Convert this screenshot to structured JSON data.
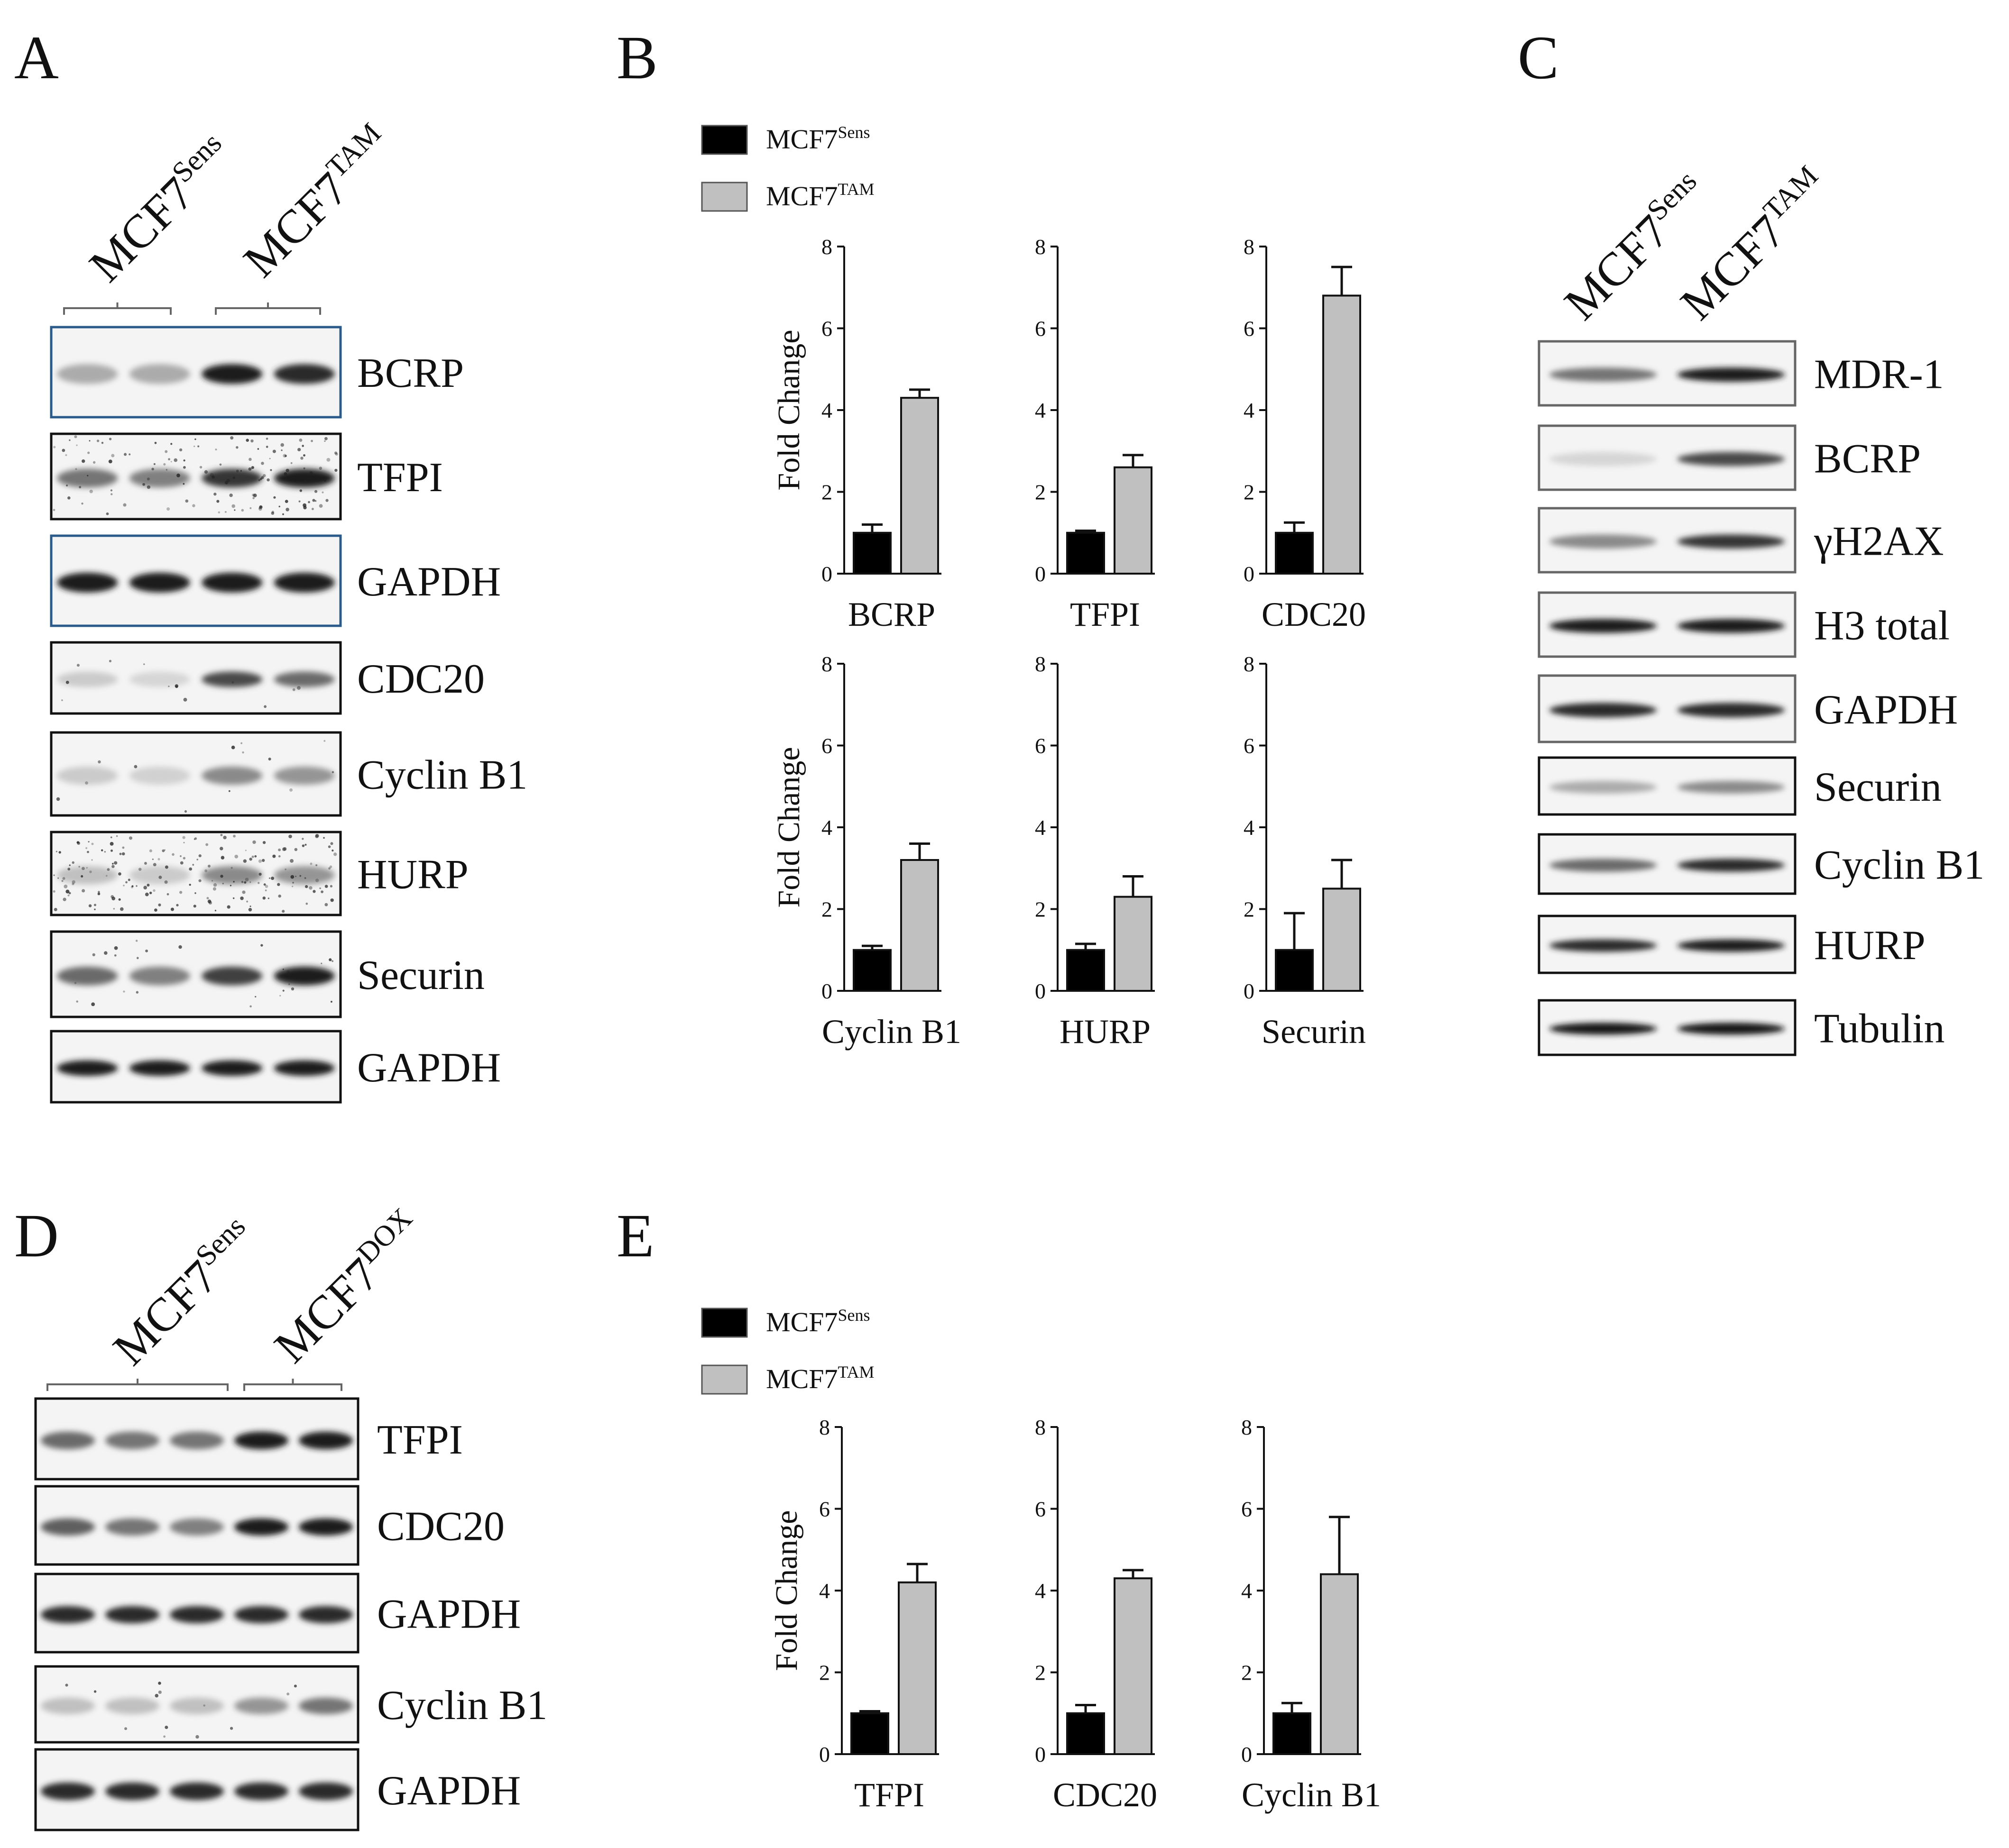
{
  "panels": {
    "A": {
      "letter": "A",
      "groups": [
        {
          "base": "MCF7",
          "sup": "Sens"
        },
        {
          "base": "MCF7",
          "sup": "TAM"
        }
      ],
      "blots": [
        {
          "label": "BCRP",
          "intensity": [
            0.3,
            0.3,
            0.95,
            0.9
          ],
          "noise": 0.0,
          "border": "#2a5a8a"
        },
        {
          "label": "TFPI",
          "intensity": [
            0.55,
            0.5,
            0.85,
            0.95
          ],
          "noise": 0.55,
          "border": "#111111"
        },
        {
          "label": "GAPDH",
          "intensity": [
            0.95,
            0.95,
            0.95,
            0.95
          ],
          "noise": 0.0,
          "border": "#2a5a8a"
        },
        {
          "label": "CDC20",
          "intensity": [
            0.15,
            0.1,
            0.75,
            0.6
          ],
          "noise": 0.05,
          "border": "#111111"
        },
        {
          "label": "Cyclin B1",
          "intensity": [
            0.15,
            0.12,
            0.45,
            0.4
          ],
          "noise": 0.05,
          "border": "#111111"
        },
        {
          "label": "HURP",
          "intensity": [
            0.2,
            0.15,
            0.45,
            0.4
          ],
          "noise": 0.75,
          "border": "#111111"
        },
        {
          "label": "Securin",
          "intensity": [
            0.6,
            0.5,
            0.8,
            0.95
          ],
          "noise": 0.1,
          "border": "#111111"
        },
        {
          "label": "GAPDH",
          "intensity": [
            0.95,
            0.95,
            0.95,
            0.95
          ],
          "noise": 0.0,
          "border": "#111111"
        }
      ]
    },
    "B": {
      "letter": "B",
      "legend": [
        {
          "base": "MCF7",
          "sup": "Sens",
          "color": "#000000"
        },
        {
          "base": "MCF7",
          "sup": "TAM",
          "color": "#c0c0c0"
        }
      ],
      "ylabel": "Fold Change"
    },
    "C": {
      "letter": "C",
      "groups": [
        {
          "base": "MCF7",
          "sup": "Sens"
        },
        {
          "base": "MCF7",
          "sup": "TAM"
        }
      ],
      "blots": [
        {
          "label": "MDR-1",
          "intensity": [
            0.55,
            0.95
          ],
          "noise": 0.0,
          "border": "#666666"
        },
        {
          "label": "BCRP",
          "intensity": [
            0.1,
            0.75
          ],
          "noise": 0.0,
          "border": "#666666"
        },
        {
          "label": "γH2AX",
          "intensity": [
            0.45,
            0.85
          ],
          "noise": 0.0,
          "border": "#666666"
        },
        {
          "label": "H3 total",
          "intensity": [
            0.95,
            0.95
          ],
          "noise": 0.0,
          "border": "#666666"
        },
        {
          "label": "GAPDH",
          "intensity": [
            0.9,
            0.9
          ],
          "noise": 0.0,
          "border": "#666666"
        },
        {
          "label": "Securin",
          "intensity": [
            0.3,
            0.45
          ],
          "noise": 0.0,
          "border": "#111111"
        },
        {
          "label": "Cyclin B1",
          "intensity": [
            0.6,
            0.9
          ],
          "noise": 0.0,
          "border": "#111111"
        },
        {
          "label": "HURP",
          "intensity": [
            0.9,
            0.95
          ],
          "noise": 0.0,
          "border": "#111111"
        },
        {
          "label": "Tubulin",
          "intensity": [
            1.0,
            1.0
          ],
          "noise": 0.0,
          "border": "#111111"
        }
      ]
    },
    "D": {
      "letter": "D",
      "groups": [
        {
          "base": "MCF7",
          "sup": "Sens"
        },
        {
          "base": "MCF7",
          "sup": "DOX"
        }
      ],
      "blots": [
        {
          "label": "TFPI",
          "intensity": [
            0.6,
            0.55,
            0.55,
            0.95,
            0.95
          ],
          "noise": 0.0,
          "border": "#111111"
        },
        {
          "label": "CDC20",
          "intensity": [
            0.65,
            0.55,
            0.5,
            0.95,
            0.95
          ],
          "noise": 0.0,
          "border": "#111111"
        },
        {
          "label": "GAPDH",
          "intensity": [
            0.9,
            0.9,
            0.9,
            0.9,
            0.9
          ],
          "noise": 0.0,
          "border": "#111111"
        },
        {
          "label": "Cyclin B1",
          "intensity": [
            0.2,
            0.2,
            0.2,
            0.4,
            0.55
          ],
          "noise": 0.05,
          "border": "#111111"
        },
        {
          "label": "GAPDH",
          "intensity": [
            0.9,
            0.9,
            0.9,
            0.9,
            0.9
          ],
          "noise": 0.0,
          "border": "#111111"
        }
      ]
    },
    "E": {
      "letter": "E",
      "legend": [
        {
          "base": "MCF7",
          "sup": "Sens",
          "color": "#000000"
        },
        {
          "base": "MCF7",
          "sup": "TAM",
          "color": "#c0c0c0"
        }
      ],
      "ylabel": "Fold Change"
    }
  },
  "chart_data": [
    {
      "type": "bar",
      "title": "",
      "xlabel": "BCRP",
      "ylabel": "Fold Change",
      "ylim": [
        0,
        8
      ],
      "yticks": [
        0,
        2,
        4,
        6,
        8
      ],
      "series": [
        {
          "name": "MCF7Sens",
          "values": [
            1.0
          ],
          "errors": [
            0.2
          ]
        },
        {
          "name": "MCF7TAM",
          "values": [
            4.3
          ],
          "errors": [
            0.2
          ]
        }
      ]
    },
    {
      "type": "bar",
      "title": "",
      "xlabel": "TFPI",
      "ylabel": "",
      "ylim": [
        0,
        8
      ],
      "yticks": [
        0,
        2,
        4,
        6,
        8
      ],
      "series": [
        {
          "name": "MCF7Sens",
          "values": [
            1.0
          ],
          "errors": [
            0.05
          ]
        },
        {
          "name": "MCF7TAM",
          "values": [
            2.6
          ],
          "errors": [
            0.3
          ]
        }
      ]
    },
    {
      "type": "bar",
      "title": "",
      "xlabel": "CDC20",
      "ylabel": "",
      "ylim": [
        0,
        8
      ],
      "yticks": [
        0,
        2,
        4,
        6,
        8
      ],
      "series": [
        {
          "name": "MCF7Sens",
          "values": [
            1.0
          ],
          "errors": [
            0.25
          ]
        },
        {
          "name": "MCF7TAM",
          "values": [
            6.8
          ],
          "errors": [
            0.7
          ]
        }
      ]
    },
    {
      "type": "bar",
      "title": "",
      "xlabel": "Cyclin B1",
      "ylabel": "Fold Change",
      "ylim": [
        0,
        8
      ],
      "yticks": [
        0,
        2,
        4,
        6,
        8
      ],
      "series": [
        {
          "name": "MCF7Sens",
          "values": [
            1.0
          ],
          "errors": [
            0.1
          ]
        },
        {
          "name": "MCF7TAM",
          "values": [
            3.2
          ],
          "errors": [
            0.4
          ]
        }
      ]
    },
    {
      "type": "bar",
      "title": "",
      "xlabel": "HURP",
      "ylabel": "",
      "ylim": [
        0,
        8
      ],
      "yticks": [
        0,
        2,
        4,
        6,
        8
      ],
      "series": [
        {
          "name": "MCF7Sens",
          "values": [
            1.0
          ],
          "errors": [
            0.15
          ]
        },
        {
          "name": "MCF7TAM",
          "values": [
            2.3
          ],
          "errors": [
            0.5
          ]
        }
      ]
    },
    {
      "type": "bar",
      "title": "",
      "xlabel": "Securin",
      "ylabel": "",
      "ylim": [
        0,
        8
      ],
      "yticks": [
        0,
        2,
        4,
        6,
        8
      ],
      "series": [
        {
          "name": "MCF7Sens",
          "values": [
            1.0
          ],
          "errors": [
            0.9
          ]
        },
        {
          "name": "MCF7TAM",
          "values": [
            2.5
          ],
          "errors": [
            0.7
          ]
        }
      ]
    },
    {
      "type": "bar",
      "title": "",
      "xlabel": "TFPI",
      "ylabel": "Fold Change",
      "ylim": [
        0,
        8
      ],
      "yticks": [
        0,
        2,
        4,
        6,
        8
      ],
      "series": [
        {
          "name": "MCF7Sens",
          "values": [
            1.0
          ],
          "errors": [
            0.05
          ]
        },
        {
          "name": "MCF7TAM",
          "values": [
            4.2
          ],
          "errors": [
            0.45
          ]
        }
      ]
    },
    {
      "type": "bar",
      "title": "",
      "xlabel": "CDC20",
      "ylabel": "",
      "ylim": [
        0,
        8
      ],
      "yticks": [
        0,
        2,
        4,
        6,
        8
      ],
      "series": [
        {
          "name": "MCF7Sens",
          "values": [
            1.0
          ],
          "errors": [
            0.2
          ]
        },
        {
          "name": "MCF7TAM",
          "values": [
            4.3
          ],
          "errors": [
            0.2
          ]
        }
      ]
    },
    {
      "type": "bar",
      "title": "",
      "xlabel": "Cyclin B1",
      "ylabel": "",
      "ylim": [
        0,
        8
      ],
      "yticks": [
        0,
        2,
        4,
        6,
        8
      ],
      "series": [
        {
          "name": "MCF7Sens",
          "values": [
            1.0
          ],
          "errors": [
            0.25
          ]
        },
        {
          "name": "MCF7TAM",
          "values": [
            4.4
          ],
          "errors": [
            1.4
          ]
        }
      ]
    }
  ]
}
